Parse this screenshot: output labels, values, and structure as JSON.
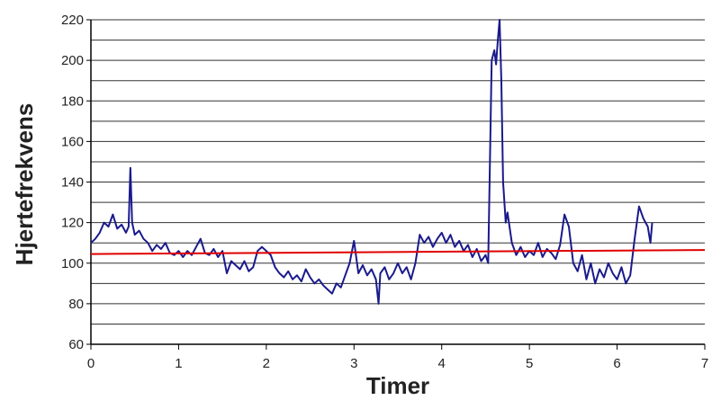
{
  "chart_data": {
    "type": "line",
    "x_label": "Timer",
    "y_label": "Hjertefrekvens",
    "x": [
      0,
      0.05,
      0.1,
      0.15,
      0.2,
      0.25,
      0.3,
      0.35,
      0.4,
      0.43,
      0.45,
      0.47,
      0.5,
      0.55,
      0.6,
      0.65,
      0.7,
      0.75,
      0.8,
      0.85,
      0.9,
      0.95,
      1.0,
      1.05,
      1.1,
      1.15,
      1.2,
      1.25,
      1.3,
      1.35,
      1.4,
      1.45,
      1.5,
      1.55,
      1.6,
      1.65,
      1.7,
      1.75,
      1.8,
      1.85,
      1.9,
      1.95,
      2.0,
      2.05,
      2.1,
      2.15,
      2.2,
      2.25,
      2.3,
      2.35,
      2.4,
      2.45,
      2.5,
      2.55,
      2.6,
      2.65,
      2.7,
      2.75,
      2.8,
      2.85,
      2.9,
      2.95,
      3.0,
      3.05,
      3.1,
      3.15,
      3.2,
      3.25,
      3.28,
      3.3,
      3.35,
      3.4,
      3.45,
      3.5,
      3.55,
      3.6,
      3.65,
      3.7,
      3.75,
      3.8,
      3.85,
      3.9,
      3.95,
      4.0,
      4.05,
      4.1,
      4.15,
      4.2,
      4.25,
      4.3,
      4.35,
      4.4,
      4.45,
      4.5,
      4.53,
      4.55,
      4.57,
      4.6,
      4.62,
      4.64,
      4.66,
      4.68,
      4.7,
      4.73,
      4.75,
      4.8,
      4.85,
      4.9,
      4.95,
      5.0,
      5.05,
      5.1,
      5.15,
      5.2,
      5.25,
      5.3,
      5.35,
      5.4,
      5.45,
      5.5,
      5.55,
      5.6,
      5.65,
      5.7,
      5.75,
      5.8,
      5.85,
      5.9,
      5.95,
      6.0,
      6.05,
      6.1,
      6.15,
      6.2,
      6.25,
      6.3,
      6.35,
      6.38,
      6.4
    ],
    "series": [
      {
        "color": "#1a1a8c",
        "values": [
          110,
          112,
          115,
          120,
          118,
          124,
          117,
          119,
          115,
          118,
          147,
          120,
          114,
          116,
          112,
          110,
          106,
          109,
          107,
          110,
          105,
          104,
          106,
          103,
          106,
          104,
          108,
          112,
          105,
          104,
          107,
          103,
          106,
          95,
          101,
          99,
          97,
          101,
          96,
          98,
          106,
          108,
          106,
          104,
          98,
          95,
          93,
          96,
          92,
          94,
          91,
          97,
          93,
          90,
          92,
          89,
          87,
          85,
          90,
          88,
          94,
          100,
          111,
          95,
          99,
          94,
          97,
          92,
          80,
          95,
          98,
          92,
          95,
          100,
          95,
          98,
          92,
          100,
          114,
          110,
          113,
          108,
          112,
          115,
          110,
          114,
          108,
          111,
          106,
          109,
          103,
          107,
          101,
          104,
          100,
          150,
          200,
          205,
          198,
          210,
          220,
          190,
          140,
          120,
          125,
          110,
          104,
          108,
          103,
          106,
          104,
          110,
          103,
          107,
          105,
          102,
          109,
          124,
          118,
          100,
          96,
          104,
          92,
          100,
          90,
          97,
          93,
          100,
          95,
          92,
          98,
          90,
          94,
          112,
          128,
          122,
          118,
          110,
          120
        ]
      }
    ],
    "trend": {
      "color": "#e00000",
      "x": [
        0,
        7
      ],
      "values": [
        104.5,
        106.5
      ]
    },
    "xlim": [
      0,
      7
    ],
    "xticks": [
      0,
      1,
      2,
      3,
      4,
      5,
      6,
      7
    ],
    "ylim": [
      60,
      220
    ],
    "yticks": [
      60,
      80,
      100,
      120,
      140,
      160,
      180,
      200,
      220
    ],
    "y_minor_ticks": [
      70,
      90,
      110,
      130,
      150,
      170,
      190,
      210
    ],
    "grid": true
  }
}
